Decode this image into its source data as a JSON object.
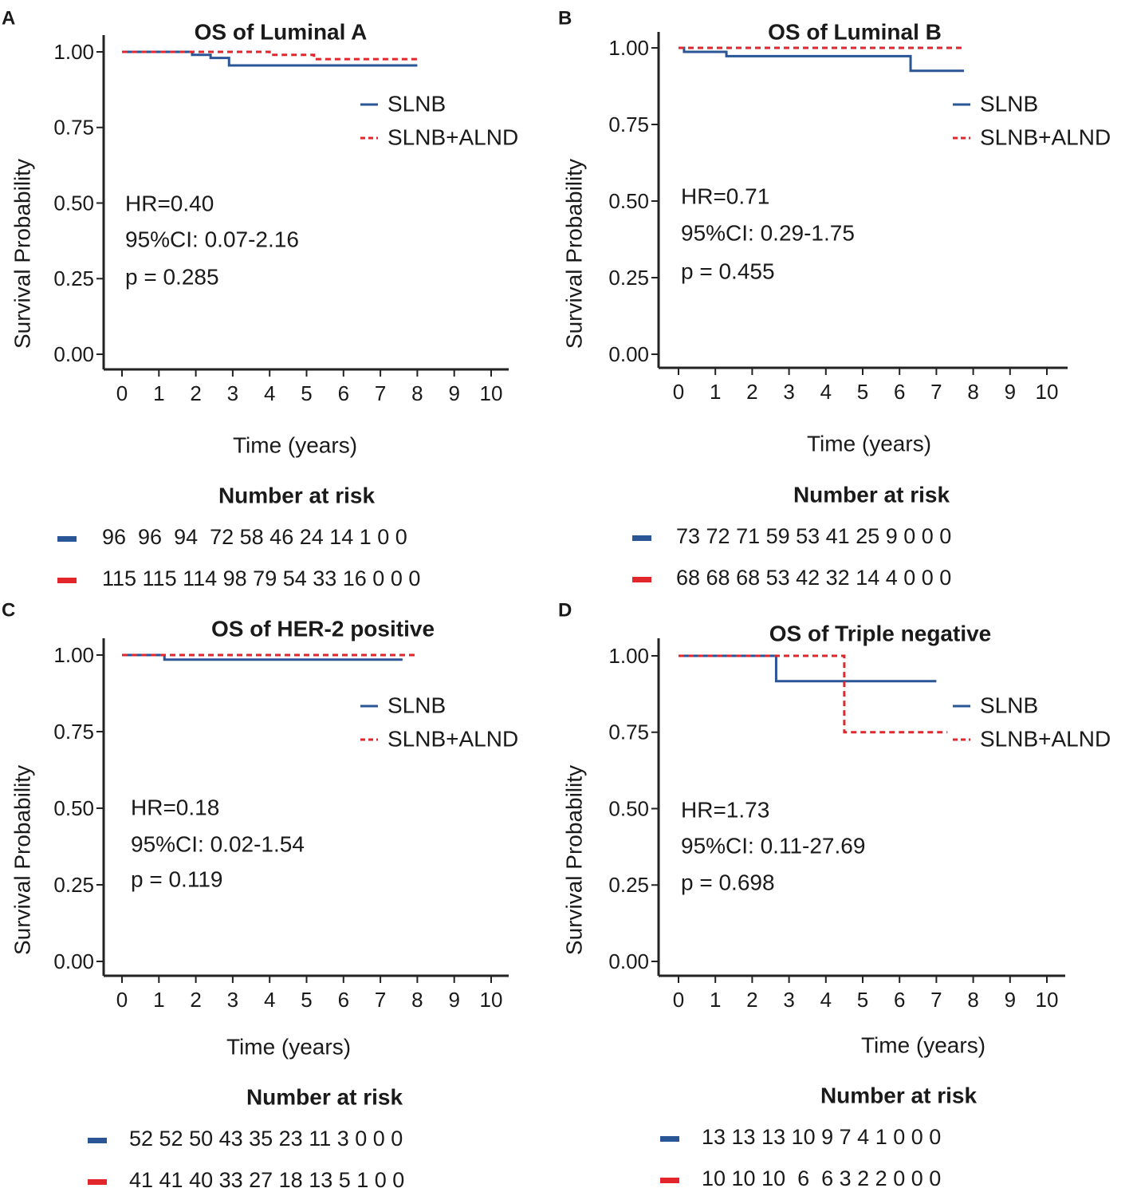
{
  "colors": {
    "slnb": "#2a5597",
    "alnd": "#e2262b",
    "axis": "#222222",
    "text": "#1a1a1a"
  },
  "chart_data": [
    {
      "panel": "A",
      "type": "line",
      "title": "OS of Luminal A",
      "xlabel": "Time (years)",
      "ylabel": "Survival Probability",
      "xlim": [
        0,
        10
      ],
      "ylim": [
        0,
        1
      ],
      "xticks": [
        "0",
        "1",
        "2",
        "3",
        "4",
        "5",
        "6",
        "7",
        "8",
        "9",
        "10"
      ],
      "yticks": [
        "0.00",
        "0.25",
        "0.50",
        "0.75",
        "1.00"
      ],
      "legend": [
        "SLNB",
        "SLNB+ALND"
      ],
      "stats": {
        "hr": "HR=0.40",
        "ci": "95%CI: 0.07-2.16",
        "p": "p = 0.285"
      },
      "series": [
        {
          "name": "SLNB",
          "line": "solid",
          "x": [
            0,
            1.9,
            2.4,
            2.9,
            8.0
          ],
          "y": [
            1.0,
            0.99,
            0.98,
            0.955,
            0.955
          ]
        },
        {
          "name": "SLNB+ALND",
          "line": "dashed",
          "x": [
            0,
            4.0,
            5.2,
            8.0
          ],
          "y": [
            1.0,
            0.99,
            0.976,
            0.976
          ]
        }
      ],
      "risk_title": "Number at risk",
      "risk": [
        {
          "name": "SLNB",
          "text": "96  96  94  72 58 46 24 14 1 0 0"
        },
        {
          "name": "SLNB+ALND",
          "text": "115 115 114 98 79 54 33 16 0 0 0"
        }
      ]
    },
    {
      "panel": "B",
      "type": "line",
      "title": "OS of Luminal B",
      "xlabel": "Time (years)",
      "ylabel": "Survival Probability",
      "xlim": [
        0,
        10
      ],
      "ylim": [
        0,
        1
      ],
      "xticks": [
        "0",
        "1",
        "2",
        "3",
        "4",
        "5",
        "6",
        "7",
        "8",
        "9",
        "10"
      ],
      "yticks": [
        "0.00",
        "0.25",
        "0.50",
        "0.75",
        "1.00"
      ],
      "legend": [
        "SLNB",
        "SLNB+ALND"
      ],
      "stats": {
        "hr": "HR=0.71",
        "ci": "95%CI: 0.29-1.75",
        "p": "p = 0.455"
      },
      "series": [
        {
          "name": "SLNB",
          "line": "solid",
          "x": [
            0,
            0.15,
            1.3,
            6.3,
            7.75
          ],
          "y": [
            1.0,
            0.987,
            0.973,
            0.925,
            0.925
          ]
        },
        {
          "name": "SLNB+ALND",
          "line": "dashed",
          "x": [
            0,
            7.75
          ],
          "y": [
            1.0,
            1.0
          ]
        }
      ],
      "risk_title": "Number at risk",
      "risk": [
        {
          "name": "SLNB",
          "text": "73 72 71 59 53 41 25 9 0 0 0"
        },
        {
          "name": "SLNB+ALND",
          "text": "68 68 68 53 42 32 14 4 0 0 0"
        }
      ]
    },
    {
      "panel": "C",
      "type": "line",
      "title": "OS of HER-2 positive",
      "xlabel": "Time (years)",
      "ylabel": "Survival Probability",
      "xlim": [
        0,
        10
      ],
      "ylim": [
        0,
        1
      ],
      "xticks": [
        "0",
        "1",
        "2",
        "3",
        "4",
        "5",
        "6",
        "7",
        "8",
        "9",
        "10"
      ],
      "yticks": [
        "0.00",
        "0.25",
        "0.50",
        "0.75",
        "1.00"
      ],
      "legend": [
        "SLNB",
        "SLNB+ALND"
      ],
      "stats": {
        "hr": "HR=0.18",
        "ci": "95%CI: 0.02-1.54",
        "p": "p = 0.119"
      },
      "series": [
        {
          "name": "SLNB",
          "line": "solid",
          "x": [
            0,
            1.15,
            7.6
          ],
          "y": [
            1.0,
            0.985,
            0.985
          ]
        },
        {
          "name": "SLNB+ALND",
          "line": "dashed",
          "x": [
            0,
            8.0
          ],
          "y": [
            1.0,
            1.0
          ]
        }
      ],
      "risk_title": "Number at risk",
      "risk": [
        {
          "name": "SLNB",
          "text": "52 52 50 43 35 23 11 3 0 0 0"
        },
        {
          "name": "SLNB+ALND",
          "text": "41 41 40 33 27 18 13 5 1 0 0"
        }
      ]
    },
    {
      "panel": "D",
      "type": "line",
      "title": "OS of Triple negative",
      "xlabel": "Time (years)",
      "ylabel": "Survival Probability",
      "xlim": [
        0,
        10
      ],
      "ylim": [
        0,
        1
      ],
      "xticks": [
        "0",
        "1",
        "2",
        "3",
        "4",
        "5",
        "6",
        "7",
        "8",
        "9",
        "10"
      ],
      "yticks": [
        "0.00",
        "0.25",
        "0.50",
        "0.75",
        "1.00"
      ],
      "legend": [
        "SLNB",
        "SLNB+ALND"
      ],
      "stats": {
        "hr": "HR=1.73",
        "ci": "95%CI: 0.11-27.69",
        "p": "p = 0.698"
      },
      "series": [
        {
          "name": "SLNB",
          "line": "solid",
          "x": [
            0,
            2.65,
            7.0
          ],
          "y": [
            1.0,
            0.917,
            0.917
          ]
        },
        {
          "name": "SLNB+ALND",
          "line": "dashed",
          "x": [
            0,
            4.5,
            7.3
          ],
          "y": [
            1.0,
            0.75,
            0.75
          ]
        }
      ],
      "risk_title": "Number at risk",
      "risk": [
        {
          "name": "SLNB",
          "text": "13 13 13 10 9 7 4 1 0 0 0"
        },
        {
          "name": "SLNB+ALND",
          "text": "10 10 10  6  6 3 2 2 0 0 0"
        }
      ]
    }
  ]
}
